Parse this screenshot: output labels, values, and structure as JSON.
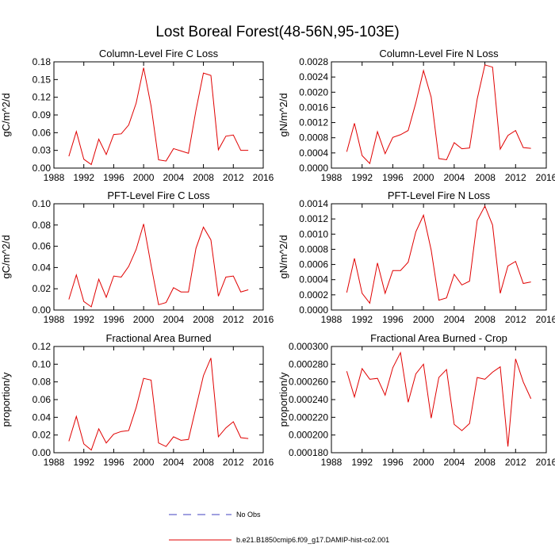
{
  "figure": {
    "title": "Lost Boreal Forest(48-56N,95-103E)"
  },
  "colors": {
    "model": "#e00000",
    "obs": "#4040c0"
  },
  "legend": {
    "obs_label": "No Obs",
    "model_label": "b.e21.B1850cmip6.f09_g17.DAMIP-hist-co2.001"
  },
  "chart_data": [
    {
      "type": "line",
      "title": "Column-Level Fire C Loss",
      "ylabel": "gC/m^2/d",
      "xlim": [
        1988,
        2016
      ],
      "ylim": [
        0,
        0.18
      ],
      "xticks": [
        1988,
        1992,
        1996,
        2000,
        2004,
        2008,
        2012,
        2016
      ],
      "xtick_labels": [
        "1988",
        "1992",
        "1996",
        "2000",
        "2004",
        "2008",
        "2012",
        "2016"
      ],
      "yticks": [
        0,
        0.03,
        0.06,
        0.09,
        0.12,
        0.15,
        0.18
      ],
      "ytick_labels": [
        "0.00",
        "0.03",
        "0.06",
        "0.09",
        "0.12",
        "0.15",
        "0.18"
      ],
      "x": [
        1990,
        1991,
        1992,
        1993,
        1994,
        1995,
        1996,
        1997,
        1998,
        1999,
        2000,
        2001,
        2002,
        2003,
        2004,
        2005,
        2006,
        2007,
        2008,
        2009,
        2010,
        2011,
        2012,
        2013,
        2014
      ],
      "values": [
        0.02,
        0.062,
        0.015,
        0.006,
        0.049,
        0.023,
        0.057,
        0.058,
        0.073,
        0.11,
        0.17,
        0.105,
        0.014,
        0.012,
        0.033,
        0.029,
        0.025,
        0.098,
        0.161,
        0.157,
        0.031,
        0.054,
        0.056,
        0.03,
        0.03
      ]
    },
    {
      "type": "line",
      "title": "Column-Level Fire N Loss",
      "ylabel": "gN/m^2/d",
      "xlim": [
        1988,
        2016
      ],
      "ylim": [
        0,
        0.0028
      ],
      "xticks": [
        1988,
        1992,
        1996,
        2000,
        2004,
        2008,
        2012,
        2016
      ],
      "xtick_labels": [
        "1988",
        "1992",
        "1996",
        "2000",
        "2004",
        "2008",
        "2012",
        "2016"
      ],
      "yticks": [
        0,
        0.0004,
        0.0008,
        0.0012,
        0.0016,
        0.002,
        0.0024,
        0.0028
      ],
      "ytick_labels": [
        "0.0000",
        "0.0004",
        "0.0008",
        "0.0012",
        "0.0016",
        "0.0020",
        "0.0024",
        "0.0028"
      ],
      "x": [
        1990,
        1991,
        1992,
        1993,
        1994,
        1995,
        1996,
        1997,
        1998,
        1999,
        2000,
        2001,
        2002,
        2003,
        2004,
        2005,
        2006,
        2007,
        2008,
        2009,
        2010,
        2011,
        2012,
        2013,
        2014
      ],
      "values": [
        0.00043,
        0.00118,
        0.00033,
        0.00012,
        0.00096,
        0.00038,
        0.00081,
        0.00088,
        0.00099,
        0.00172,
        0.00257,
        0.00187,
        0.00025,
        0.00022,
        0.00067,
        0.00051,
        0.00053,
        0.00182,
        0.00272,
        0.00266,
        0.0005,
        0.00086,
        0.00099,
        0.00054,
        0.00052
      ]
    },
    {
      "type": "line",
      "title": "PFT-Level Fire C Loss",
      "ylabel": "gC/m^2/d",
      "xlim": [
        1988,
        2016
      ],
      "ylim": [
        0,
        0.1
      ],
      "xticks": [
        1988,
        1992,
        1996,
        2000,
        2004,
        2008,
        2012,
        2016
      ],
      "xtick_labels": [
        "1988",
        "1992",
        "1996",
        "2000",
        "2004",
        "2008",
        "2012",
        "2016"
      ],
      "yticks": [
        0,
        0.02,
        0.04,
        0.06,
        0.08,
        0.1
      ],
      "ytick_labels": [
        "0.00",
        "0.02",
        "0.04",
        "0.06",
        "0.08",
        "0.10"
      ],
      "x": [
        1990,
        1991,
        1992,
        1993,
        1994,
        1995,
        1996,
        1997,
        1998,
        1999,
        2000,
        2001,
        2002,
        2003,
        2004,
        2005,
        2006,
        2007,
        2008,
        2009,
        2010,
        2011,
        2012,
        2013,
        2014
      ],
      "values": [
        0.01,
        0.033,
        0.008,
        0.003,
        0.029,
        0.012,
        0.032,
        0.031,
        0.041,
        0.057,
        0.081,
        0.042,
        0.005,
        0.007,
        0.021,
        0.017,
        0.017,
        0.058,
        0.078,
        0.066,
        0.013,
        0.031,
        0.032,
        0.017,
        0.019
      ]
    },
    {
      "type": "line",
      "title": "PFT-Level Fire N Loss",
      "ylabel": "gN/m^2/d",
      "xlim": [
        1988,
        2016
      ],
      "ylim": [
        0,
        0.0014
      ],
      "xticks": [
        1988,
        1992,
        1996,
        2000,
        2004,
        2008,
        2012,
        2016
      ],
      "xtick_labels": [
        "1988",
        "1992",
        "1996",
        "2000",
        "2004",
        "2008",
        "2012",
        "2016"
      ],
      "yticks": [
        0,
        0.0002,
        0.0004,
        0.0006,
        0.0008,
        0.001,
        0.0012,
        0.0014
      ],
      "ytick_labels": [
        "0.0000",
        "0.0002",
        "0.0004",
        "0.0006",
        "0.0008",
        "0.0010",
        "0.0012",
        "0.0014"
      ],
      "x": [
        1990,
        1991,
        1992,
        1993,
        1994,
        1995,
        1996,
        1997,
        1998,
        1999,
        2000,
        2001,
        2002,
        2003,
        2004,
        2005,
        2006,
        2007,
        2008,
        2009,
        2010,
        2011,
        2012,
        2013,
        2014
      ],
      "values": [
        0.00023,
        0.00068,
        0.00022,
        9e-05,
        0.00062,
        0.00022,
        0.00052,
        0.00052,
        0.00063,
        0.00103,
        0.00125,
        0.00079,
        0.00013,
        0.00016,
        0.00047,
        0.00033,
        0.00038,
        0.00118,
        0.00137,
        0.00112,
        0.00022,
        0.00058,
        0.00064,
        0.00035,
        0.00037
      ]
    },
    {
      "type": "line",
      "title": "Fractional Area Burned",
      "ylabel": "proportion/y",
      "xlim": [
        1988,
        2016
      ],
      "ylim": [
        0,
        0.12
      ],
      "xticks": [
        1988,
        1992,
        1996,
        2000,
        2004,
        2008,
        2012,
        2016
      ],
      "xtick_labels": [
        "1988",
        "1992",
        "1996",
        "2000",
        "2004",
        "2008",
        "2012",
        "2016"
      ],
      "yticks": [
        0,
        0.02,
        0.04,
        0.06,
        0.08,
        0.1,
        0.12
      ],
      "ytick_labels": [
        "0.00",
        "0.02",
        "0.04",
        "0.06",
        "0.08",
        "0.10",
        "0.12"
      ],
      "x": [
        1990,
        1991,
        1992,
        1993,
        1994,
        1995,
        1996,
        1997,
        1998,
        1999,
        2000,
        2001,
        2002,
        2003,
        2004,
        2005,
        2006,
        2007,
        2008,
        2009,
        2010,
        2011,
        2012,
        2013,
        2014
      ],
      "values": [
        0.013,
        0.041,
        0.01,
        0.003,
        0.027,
        0.011,
        0.021,
        0.024,
        0.025,
        0.051,
        0.084,
        0.082,
        0.011,
        0.007,
        0.018,
        0.014,
        0.015,
        0.051,
        0.087,
        0.107,
        0.018,
        0.028,
        0.035,
        0.017,
        0.016
      ]
    },
    {
      "type": "line",
      "title": "Fractional Area Burned - Crop",
      "ylabel": "proportion/y",
      "xlim": [
        1988,
        2016
      ],
      "ylim": [
        0.00018,
        0.0003
      ],
      "xticks": [
        1988,
        1992,
        1996,
        2000,
        2004,
        2008,
        2012,
        2016
      ],
      "xtick_labels": [
        "1988",
        "1992",
        "1996",
        "2000",
        "2004",
        "2008",
        "2012",
        "2016"
      ],
      "yticks": [
        0.00018,
        0.0002,
        0.00022,
        0.00024,
        0.00026,
        0.00028,
        0.0003
      ],
      "ytick_labels": [
        "0.000180",
        "0.000200",
        "0.000220",
        "0.000240",
        "0.000260",
        "0.000280",
        "0.000300"
      ],
      "x": [
        1990,
        1991,
        1992,
        1993,
        1994,
        1995,
        1996,
        1997,
        1998,
        1999,
        2000,
        2001,
        2002,
        2003,
        2004,
        2005,
        2006,
        2007,
        2008,
        2009,
        2010,
        2011,
        2012,
        2013,
        2014
      ],
      "values": [
        0.000272,
        0.000243,
        0.000275,
        0.000263,
        0.000264,
        0.000245,
        0.000276,
        0.000293,
        0.000237,
        0.000269,
        0.00028,
        0.000219,
        0.000265,
        0.000274,
        0.000212,
        0.000205,
        0.000213,
        0.000265,
        0.000263,
        0.000271,
        0.000277,
        0.000187,
        0.000286,
        0.00026,
        0.000241
      ]
    }
  ]
}
